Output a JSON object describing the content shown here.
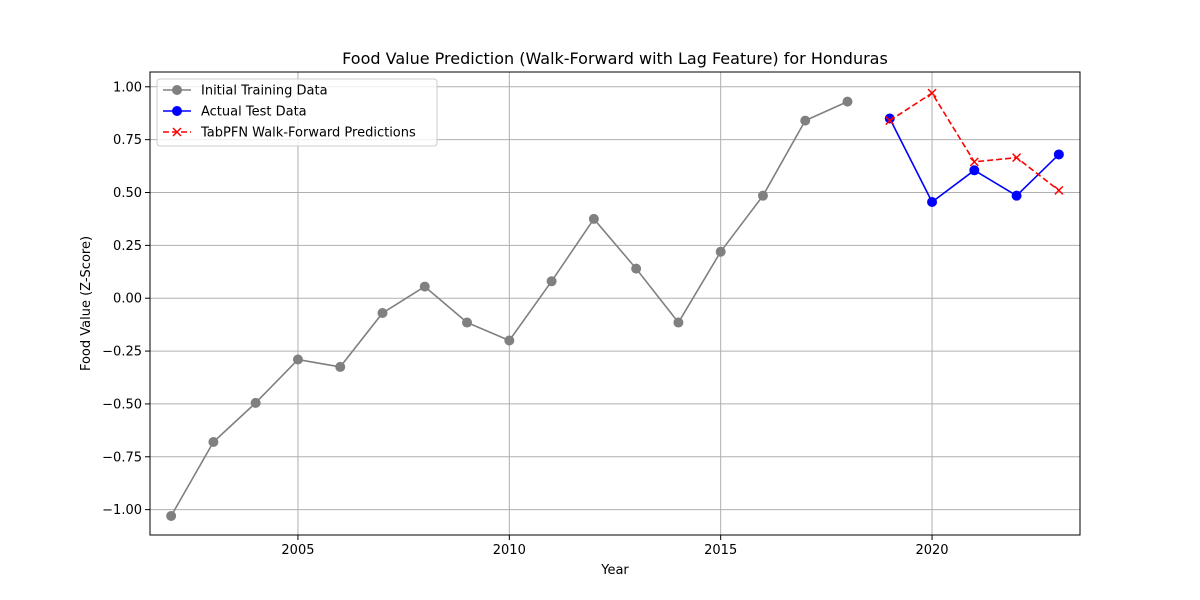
{
  "chart_data": {
    "type": "line",
    "title": "Food Value Prediction (Walk-Forward with Lag Feature) for Honduras",
    "xlabel": "Year",
    "ylabel": "Food Value (Z-Score)",
    "xlim": [
      2001.5,
      2023.5
    ],
    "ylim": [
      -1.12,
      1.07
    ],
    "x_ticks": [
      2005,
      2010,
      2015,
      2020
    ],
    "y_ticks": [
      1.0,
      0.75,
      0.5,
      0.25,
      0.0,
      -0.25,
      -0.5,
      -0.75,
      -1.0
    ],
    "y_tick_labels": [
      "1.00",
      "0.75",
      "0.50",
      "0.25",
      "0.00",
      "−0.25",
      "−0.50",
      "−0.75",
      "−1.00"
    ],
    "grid": true,
    "legend_position": "top-left",
    "series": [
      {
        "name": "Initial Training Data",
        "color": "#808080",
        "line_style": "solid",
        "marker": "circle",
        "x": [
          2002,
          2003,
          2004,
          2005,
          2006,
          2007,
          2008,
          2009,
          2010,
          2011,
          2012,
          2013,
          2014,
          2015,
          2016,
          2017,
          2018
        ],
        "y": [
          -1.03,
          -0.68,
          -0.495,
          -0.29,
          -0.325,
          -0.07,
          0.055,
          -0.115,
          -0.2,
          0.08,
          0.375,
          0.14,
          -0.115,
          0.22,
          0.485,
          0.84,
          0.93
        ]
      },
      {
        "name": "Actual Test Data",
        "color": "#0000ff",
        "line_style": "solid",
        "marker": "circle",
        "x": [
          2019,
          2020,
          2021,
          2022,
          2023
        ],
        "y": [
          0.85,
          0.455,
          0.605,
          0.485,
          0.68
        ]
      },
      {
        "name": "TabPFN Walk-Forward Predictions",
        "color": "#ff0000",
        "line_style": "dashed",
        "marker": "x",
        "x": [
          2019,
          2020,
          2021,
          2022,
          2023
        ],
        "y": [
          0.84,
          0.97,
          0.645,
          0.665,
          0.51
        ]
      }
    ]
  }
}
